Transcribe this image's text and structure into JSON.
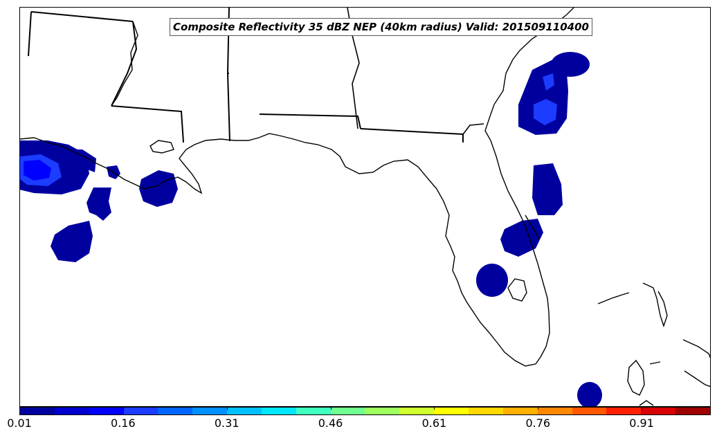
{
  "title": "Composite Reflectivity 35 dBZ NEP (40km radius) Valid: 201509110400",
  "colorbar": {
    "colors": [
      "#00009f",
      "#0000d0",
      "#0000ff",
      "#1c3cff",
      "#0066ff",
      "#0090ff",
      "#00c0ff",
      "#00e8ff",
      "#40ffc0",
      "#70ff90",
      "#a0ff60",
      "#d0ff30",
      "#ffff00",
      "#ffd800",
      "#ffb000",
      "#ff8800",
      "#ff5800",
      "#ff2000",
      "#d80000",
      "#9f0000"
    ],
    "ticks": [
      "0.01",
      "0.16",
      "0.31",
      "0.46",
      "0.61",
      "0.76",
      "0.91"
    ]
  },
  "probability_areas": [
    {
      "location": "Gulf south of Louisiana",
      "level": "0.01-0.16"
    },
    {
      "location": "Atlantic off Georgia/NE Florida",
      "level": "0.01-0.16"
    },
    {
      "location": "East-central Florida coast",
      "level": "0.01-0.06"
    },
    {
      "location": "West-central Florida",
      "level": "0.01-0.06"
    },
    {
      "location": "South of Florida Keys",
      "level": "0.01-0.06"
    }
  ]
}
